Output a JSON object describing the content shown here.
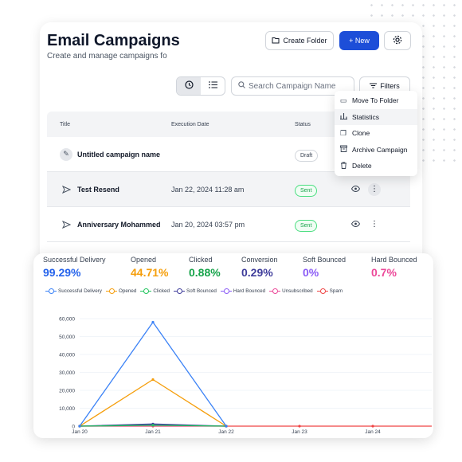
{
  "header": {
    "title": "Email Campaigns",
    "subtitle": "Create and manage campaigns fo",
    "create_folder_label": "Create Folder",
    "new_label": "+ New"
  },
  "toolbar": {
    "search_placeholder": "Search Campaign Name",
    "filters_label": "Filters"
  },
  "table": {
    "columns": [
      "Title",
      "Execution Date",
      "Status"
    ],
    "rows": [
      {
        "title": "Untitled campaign name",
        "date": "",
        "status": "Draft"
      },
      {
        "title": "Test Resend",
        "date": "Jan 22, 2024 11:28 am",
        "status": "Sent"
      },
      {
        "title": "Anniversary Mohammed",
        "date": "Jan 20, 2024 03:57 pm",
        "status": "Sent"
      }
    ]
  },
  "dropdown": {
    "items": [
      "Move To Folder",
      "Statistics",
      "Clone",
      "Archive Campaign",
      "Delete"
    ]
  },
  "stats": {
    "metrics": [
      {
        "label": "Successful Delivery",
        "value": "99.29%",
        "color": "#2563eb"
      },
      {
        "label": "Opened",
        "value": "44.71%",
        "color": "#f59e0b"
      },
      {
        "label": "Clicked",
        "value": "0.88%",
        "color": "#16a34a"
      },
      {
        "label": "Conversion",
        "value": "0.29%",
        "color": "#3f3d9b"
      },
      {
        "label": "Soft Bounced",
        "value": "0%",
        "color": "#8b5cf6"
      },
      {
        "label": "Hard Bounced",
        "value": "0.7%",
        "color": "#ec4899"
      }
    ],
    "legend": [
      {
        "name": "Successful Delivery",
        "color": "#3b82f6"
      },
      {
        "name": "Opened",
        "color": "#f59e0b"
      },
      {
        "name": "Clicked",
        "color": "#22c55e"
      },
      {
        "name": "Soft Bounced",
        "color": "#3f3d9b"
      },
      {
        "name": "Hard Bounced",
        "color": "#8b5cf6"
      },
      {
        "name": "Unsubscribed",
        "color": "#ec4899"
      },
      {
        "name": "Spam",
        "color": "#ef4444"
      }
    ]
  },
  "chart_data": {
    "type": "line",
    "x": [
      "Jan 20",
      "Jan 21",
      "Jan 22",
      "Jan 23",
      "Jan 24"
    ],
    "ylim": [
      0,
      60000
    ],
    "yticks": [
      "0",
      "10,000",
      "20,000",
      "30,000",
      "40,000",
      "50,000",
      "60,000"
    ],
    "ytick_values": [
      0,
      10000,
      20000,
      30000,
      40000,
      50000,
      60000
    ],
    "grid": true,
    "legend_position": "top-left",
    "series": [
      {
        "name": "Successful Delivery",
        "color": "#3b82f6",
        "values": [
          0,
          58000,
          0,
          null,
          null
        ]
      },
      {
        "name": "Opened",
        "color": "#f59e0b",
        "values": [
          0,
          26000,
          0,
          null,
          null
        ]
      },
      {
        "name": "Clicked",
        "color": "#22c55e",
        "values": [
          0,
          500,
          0,
          null,
          null
        ]
      },
      {
        "name": "Soft Bounced",
        "color": "#3f3d9b",
        "values": [
          0,
          1200,
          0,
          null,
          null
        ]
      },
      {
        "name": "Hard Bounced",
        "color": "#8b5cf6",
        "values": [
          0,
          700,
          0,
          null,
          null
        ]
      },
      {
        "name": "Unsubscribed",
        "color": "#ec4899",
        "values": [
          0,
          200,
          0,
          null,
          null
        ]
      },
      {
        "name": "Spam",
        "color": "#ef4444",
        "values": [
          0,
          0,
          0,
          0,
          0
        ]
      }
    ]
  }
}
